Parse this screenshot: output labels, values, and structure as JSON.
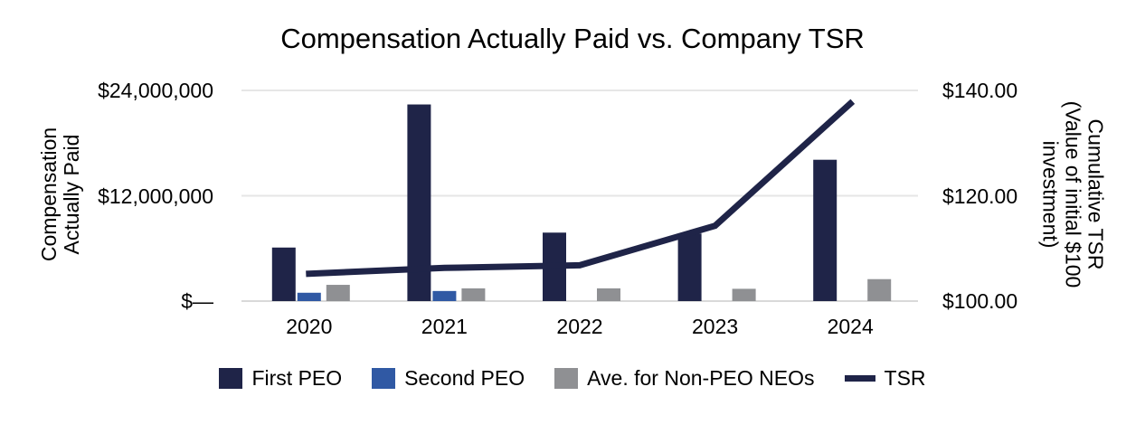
{
  "chart": {
    "title": "Compensation Actually Paid vs. Company TSR"
  },
  "chart_data": {
    "type": "bar",
    "title": "Compensation Actually Paid vs. Company TSR",
    "categories": [
      "2020",
      "2021",
      "2022",
      "2023",
      "2024"
    ],
    "series": [
      {
        "name": "First PEO",
        "type": "bar",
        "axis": "left",
        "color": "#1f2448",
        "values": [
          6100000,
          22400000,
          7800000,
          7700000,
          16100000
        ]
      },
      {
        "name": "Second PEO",
        "type": "bar",
        "axis": "left",
        "color": "#3059a4",
        "values": [
          950000,
          1150000,
          0,
          0,
          0
        ]
      },
      {
        "name": "Ave. for Non-PEO NEOs",
        "type": "bar",
        "axis": "left",
        "color": "#8f9093",
        "values": [
          1850000,
          1450000,
          1450000,
          1400000,
          2500000
        ]
      },
      {
        "name": "TSR",
        "type": "line",
        "axis": "right",
        "color": "#1f2448",
        "values": [
          105.2,
          106.3,
          106.8,
          114.3,
          137.5
        ]
      }
    ],
    "left_axis": {
      "title_lines": [
        "Compensation",
        "Actually Paid"
      ],
      "ticks": [
        "$24,000,000",
        "$12,000,000",
        "$—"
      ],
      "tick_values": [
        24000000,
        12000000,
        0
      ],
      "min": 0,
      "max": 24000000
    },
    "right_axis": {
      "title_lines": [
        "Cumulative TSR",
        "(Value of initial $100",
        "investment)"
      ],
      "ticks": [
        "$140.00",
        "$120.00",
        "$100.00"
      ],
      "tick_values": [
        140,
        120,
        100
      ],
      "min": 100,
      "max": 140
    },
    "legend_position": "bottom",
    "grid": true,
    "gridline_color": "#e6e6e6",
    "baseline_color": "#d9d9d9"
  }
}
